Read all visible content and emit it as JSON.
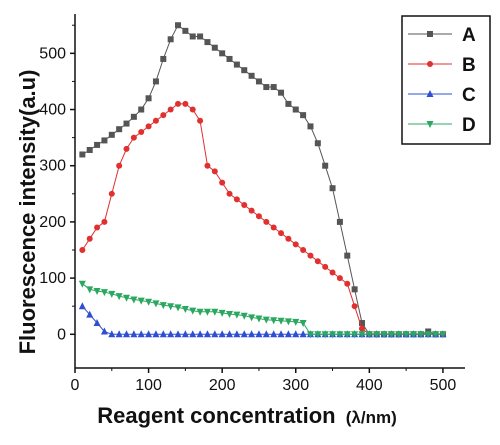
{
  "chart_data": {
    "type": "line",
    "xlabel": "Reagent concentration",
    "xlabel_unit": "(λ/nm)",
    "ylabel": "Fluorescence intensity(a.u)",
    "xlim": [
      0,
      530
    ],
    "ylim": [
      -60,
      570
    ],
    "xticks": [
      0,
      100,
      200,
      300,
      400,
      500
    ],
    "yticks": [
      0,
      100,
      200,
      300,
      400,
      500
    ],
    "legend_position": "top-right",
    "series": [
      {
        "name": "A",
        "color": "#555555",
        "marker": "square",
        "x": [
          10,
          20,
          30,
          40,
          50,
          60,
          70,
          80,
          90,
          100,
          110,
          120,
          130,
          140,
          150,
          160,
          170,
          180,
          190,
          200,
          210,
          220,
          230,
          240,
          250,
          260,
          270,
          280,
          290,
          300,
          310,
          320,
          330,
          340,
          350,
          360,
          370,
          380,
          390,
          400,
          410,
          420,
          430,
          440,
          450,
          460,
          470,
          480,
          490,
          500
        ],
        "y": [
          320,
          328,
          337,
          345,
          355,
          365,
          375,
          387,
          400,
          420,
          450,
          490,
          525,
          550,
          540,
          530,
          530,
          520,
          510,
          500,
          490,
          480,
          470,
          460,
          450,
          440,
          440,
          430,
          410,
          400,
          390,
          370,
          340,
          300,
          260,
          200,
          140,
          80,
          20,
          0,
          0,
          0,
          0,
          0,
          0,
          0,
          0,
          5,
          0,
          0
        ]
      },
      {
        "name": "B",
        "color": "#e03030",
        "marker": "circle",
        "x": [
          10,
          20,
          30,
          40,
          50,
          60,
          70,
          80,
          90,
          100,
          110,
          120,
          130,
          140,
          150,
          160,
          170,
          180,
          190,
          200,
          210,
          220,
          230,
          240,
          250,
          260,
          270,
          280,
          290,
          300,
          310,
          320,
          330,
          340,
          350,
          360,
          370,
          380,
          390,
          400,
          410,
          420,
          430,
          440,
          450,
          460,
          470,
          480,
          490,
          500
        ],
        "y": [
          150,
          170,
          190,
          200,
          250,
          300,
          330,
          350,
          360,
          370,
          380,
          390,
          400,
          410,
          410,
          400,
          380,
          300,
          290,
          270,
          250,
          240,
          230,
          220,
          210,
          200,
          190,
          180,
          170,
          160,
          150,
          140,
          130,
          120,
          110,
          100,
          90,
          50,
          10,
          0,
          0,
          0,
          0,
          0,
          0,
          0,
          0,
          0,
          0,
          0
        ]
      },
      {
        "name": "C",
        "color": "#2e4fd4",
        "marker": "triangle-up",
        "x": [
          10,
          20,
          30,
          40,
          50,
          60,
          70,
          80,
          90,
          100,
          110,
          120,
          130,
          140,
          150,
          160,
          170,
          180,
          190,
          200,
          210,
          220,
          230,
          240,
          250,
          260,
          270,
          280,
          290,
          300,
          310,
          320,
          330,
          340,
          350,
          360,
          370,
          380,
          390,
          400,
          410,
          420,
          430,
          440,
          450,
          460,
          470,
          480,
          490,
          500
        ],
        "y": [
          50,
          35,
          20,
          5,
          0,
          0,
          0,
          0,
          0,
          0,
          0,
          0,
          0,
          0,
          0,
          0,
          0,
          0,
          0,
          0,
          0,
          0,
          0,
          0,
          0,
          0,
          0,
          0,
          0,
          0,
          0,
          0,
          0,
          0,
          0,
          0,
          0,
          0,
          0,
          0,
          0,
          0,
          0,
          0,
          0,
          0,
          0,
          0,
          0,
          0
        ]
      },
      {
        "name": "D",
        "color": "#2aa860",
        "marker": "triangle-down",
        "x": [
          10,
          20,
          30,
          40,
          50,
          60,
          70,
          80,
          90,
          100,
          110,
          120,
          130,
          140,
          150,
          160,
          170,
          180,
          190,
          200,
          210,
          220,
          230,
          240,
          250,
          260,
          270,
          280,
          290,
          300,
          310,
          320,
          330,
          340,
          350,
          360,
          370,
          380,
          390,
          400,
          410,
          420,
          430,
          440,
          450,
          460,
          470,
          480,
          490,
          500
        ],
        "y": [
          90,
          80,
          77,
          75,
          72,
          68,
          65,
          62,
          60,
          58,
          55,
          52,
          50,
          48,
          45,
          42,
          40,
          40,
          40,
          38,
          36,
          35,
          33,
          30,
          28,
          26,
          25,
          24,
          23,
          22,
          20,
          0,
          0,
          0,
          0,
          0,
          0,
          0,
          0,
          0,
          0,
          0,
          0,
          0,
          0,
          0,
          0,
          0,
          0,
          0
        ]
      }
    ]
  }
}
